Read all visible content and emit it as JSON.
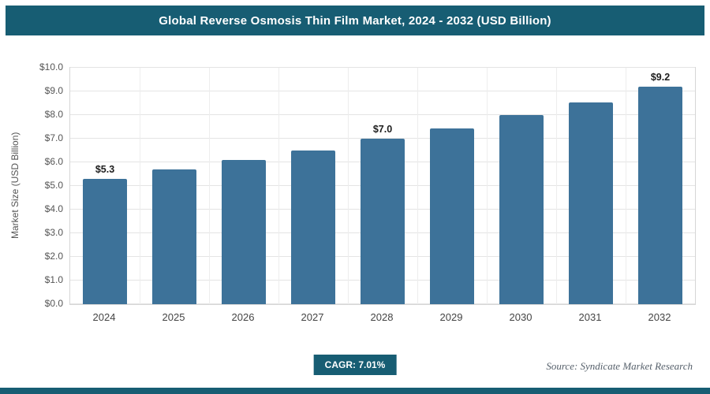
{
  "header": {
    "title": "Global Reverse Osmosis Thin Film Market, 2024 - 2032 (USD Billion)"
  },
  "chart_data": {
    "type": "bar",
    "title": "Global Reverse Osmosis Thin Film Market, 2024 - 2032 (USD Billion)",
    "categories": [
      "2024",
      "2025",
      "2026",
      "2027",
      "2028",
      "2029",
      "2030",
      "2031",
      "2032"
    ],
    "values": [
      5.3,
      5.7,
      6.1,
      6.5,
      7.0,
      7.45,
      8.0,
      8.55,
      9.2
    ],
    "bar_labels": [
      "$5.3",
      "",
      "",
      "",
      "$7.0",
      "",
      "",
      "",
      "$9.2"
    ],
    "xlabel": "",
    "ylabel": "Market Size (USD Billion)",
    "ylim": [
      0,
      10
    ],
    "ytick_values": [
      0,
      1,
      2,
      3,
      4,
      5,
      6,
      7,
      8,
      9,
      10
    ],
    "ytick_labels": [
      "$0.0",
      "$1.0",
      "$2.0",
      "$3.0",
      "$4.0",
      "$5.0",
      "$6.0",
      "$7.0",
      "$8.0",
      "$9.0",
      "$10.0"
    ],
    "grid": "horizontal-and-vertical",
    "legend": "none",
    "bar_color": "#3d7299"
  },
  "footer": {
    "cagr_badge": "CAGR: 7.01%",
    "source": "Source: Syndicate Market Research"
  },
  "colors": {
    "header_bg": "#175d73",
    "badge_bg": "#175d73",
    "strip_bg": "#175d73",
    "bar": "#3d7299"
  }
}
